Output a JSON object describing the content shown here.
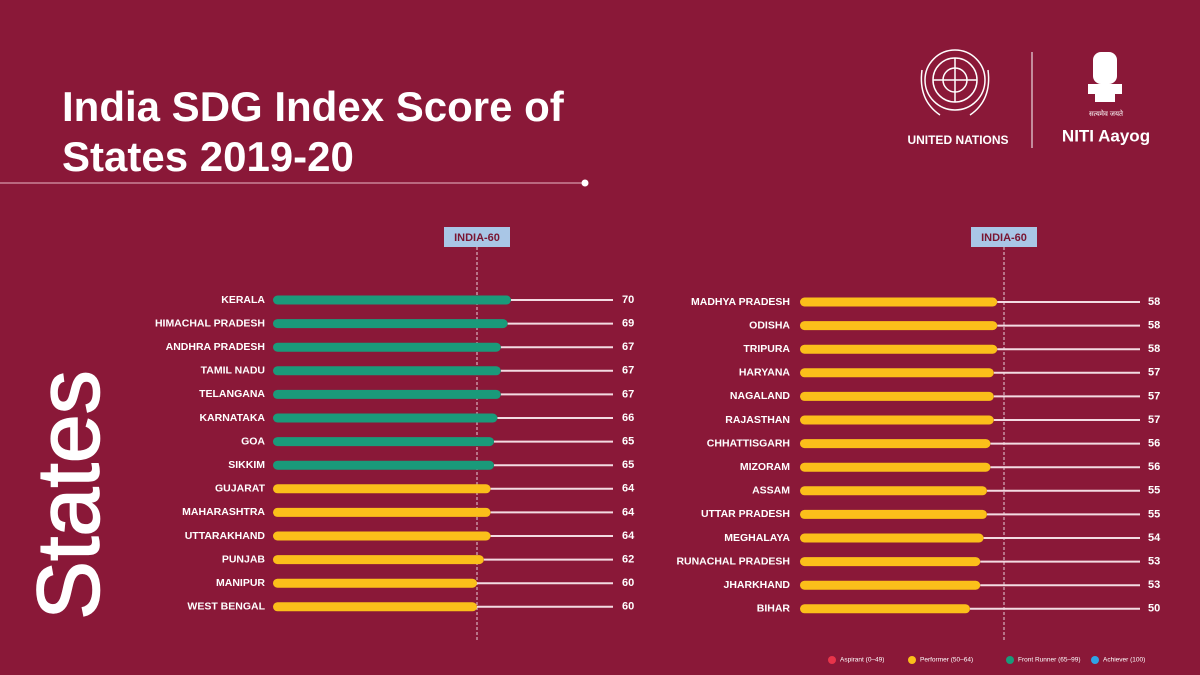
{
  "title": "India SDG Index Score of States 2019-20",
  "axis_label": "States",
  "logos": {
    "un": "UNITED NATIONS",
    "niti": "NITI Aayog",
    "motto": "सत्यमेव जयते"
  },
  "legend": [
    {
      "name": "Aspirant (0–49)",
      "color": "#e8344a"
    },
    {
      "name": "Performer (50–64)",
      "color": "#fbbf1a"
    },
    {
      "name": "Front Runner (65–99)",
      "color": "#1a9a7a"
    },
    {
      "name": "Achiever (100)",
      "color": "#2fa3e6"
    }
  ],
  "chart_data": [
    {
      "type": "bar",
      "orientation": "horizontal",
      "categories": [
        "KERALA",
        "HIMACHAL PRADESH",
        "ANDHRA PRADESH",
        "TAMIL NADU",
        "TELANGANA",
        "KARNATAKA",
        "GOA",
        "SIKKIM",
        "GUJARAT",
        "MAHARASHTRA",
        "UTTARAKHAND",
        "PUNJAB",
        "MANIPUR",
        "WEST BENGAL"
      ],
      "values": [
        70,
        69,
        67,
        67,
        67,
        66,
        65,
        65,
        64,
        64,
        64,
        62,
        60,
        60
      ],
      "colors": [
        "#1a9a7a",
        "#1a9a7a",
        "#1a9a7a",
        "#1a9a7a",
        "#1a9a7a",
        "#1a9a7a",
        "#1a9a7a",
        "#1a9a7a",
        "#fbbf1a",
        "#fbbf1a",
        "#fbbf1a",
        "#fbbf1a",
        "#fbbf1a",
        "#fbbf1a"
      ],
      "xlim": [
        0,
        100
      ],
      "reference": {
        "value": 60,
        "label": "INDIA-60"
      }
    },
    {
      "type": "bar",
      "orientation": "horizontal",
      "categories": [
        "MADHYA PRADESH",
        "ODISHA",
        "TRIPURA",
        "HARYANA",
        "NAGALAND",
        "RAJASTHAN",
        "CHHATTISGARH",
        "MIZORAM",
        "ASSAM",
        "UTTAR PRADESH",
        "MEGHALAYA",
        "RUNACHAL PRADESH",
        "JHARKHAND",
        "BIHAR"
      ],
      "values": [
        58,
        58,
        58,
        57,
        57,
        57,
        56,
        56,
        55,
        55,
        54,
        53,
        53,
        50
      ],
      "colors": [
        "#fbbf1a",
        "#fbbf1a",
        "#fbbf1a",
        "#fbbf1a",
        "#fbbf1a",
        "#fbbf1a",
        "#fbbf1a",
        "#fbbf1a",
        "#fbbf1a",
        "#fbbf1a",
        "#fbbf1a",
        "#fbbf1a",
        "#fbbf1a",
        "#fbbf1a"
      ],
      "xlim": [
        0,
        100
      ],
      "reference": {
        "value": 60,
        "label": "INDIA-60"
      }
    }
  ]
}
